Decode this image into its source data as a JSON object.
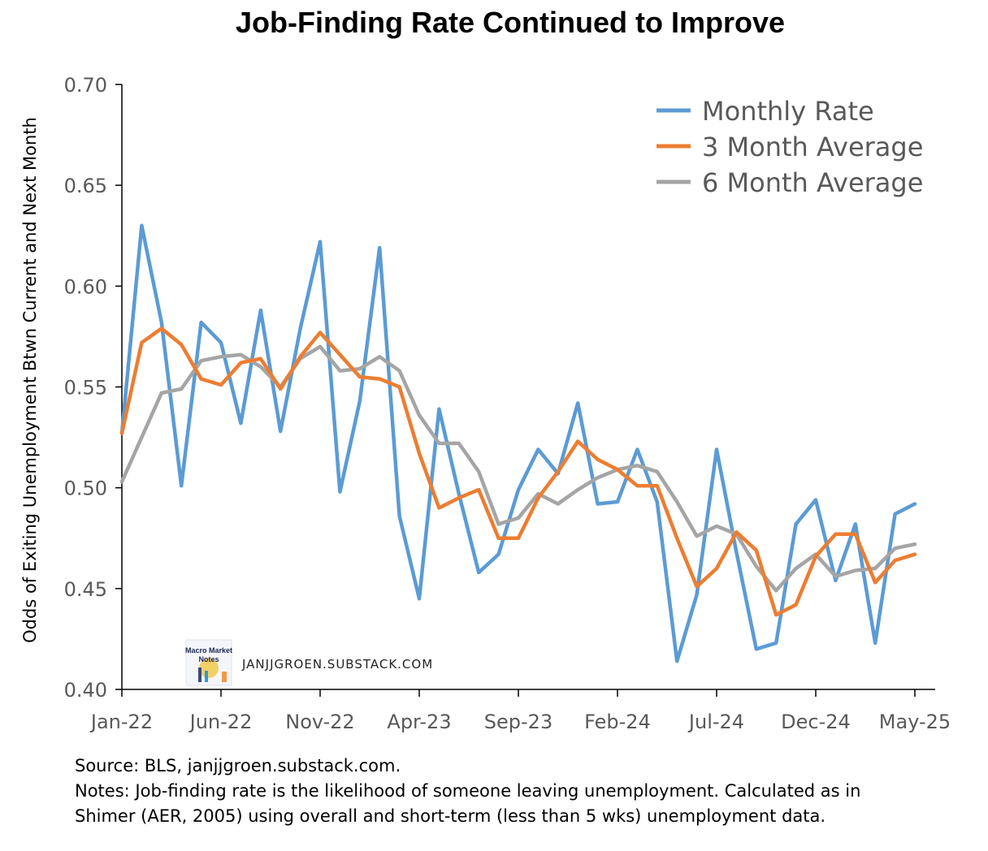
{
  "colors": {
    "monthly": "#5b9bd5",
    "avg3": "#ed7d31",
    "avg6": "#a5a5a5",
    "axis": "#000000",
    "tick_text": "#595959"
  },
  "watermark": {
    "text": "JANJJGROEN.SUBSTACK.COM",
    "logo_text_1": "Macro Market",
    "logo_text_2": "Notes"
  },
  "notes": {
    "source": "Source: BLS, janjjgroen.substack.com.",
    "line1": "Notes: Job-finding rate is the likelihood of someone leaving unemployment. Calculated as in",
    "line2": "Shimer (AER, 2005) using overall and short-term (less than 5 wks) unemployment data."
  },
  "chart_data": {
    "type": "line",
    "title": "Job-Finding Rate Continued to Improve",
    "xlabel": "",
    "ylabel": "Odds of Exiting Unemployment Btwn Current and Next Month",
    "ylim": [
      0.4,
      0.7
    ],
    "yticks": [
      "0.40",
      "0.45",
      "0.50",
      "0.55",
      "0.60",
      "0.65",
      "0.70"
    ],
    "xticks": [
      "Jan-22",
      "Jun-22",
      "Nov-22",
      "Apr-23",
      "Sep-23",
      "Feb-24",
      "Jul-24",
      "Dec-24",
      "May-25"
    ],
    "grid": false,
    "legend_position": "top-right",
    "x": [
      "Jan-22",
      "Feb-22",
      "Mar-22",
      "Apr-22",
      "May-22",
      "Jun-22",
      "Jul-22",
      "Aug-22",
      "Sep-22",
      "Oct-22",
      "Nov-22",
      "Dec-22",
      "Jan-23",
      "Feb-23",
      "Mar-23",
      "Apr-23",
      "May-23",
      "Jun-23",
      "Jul-23",
      "Aug-23",
      "Sep-23",
      "Oct-23",
      "Nov-23",
      "Dec-23",
      "Jan-24",
      "Feb-24",
      "Mar-24",
      "Apr-24",
      "May-24",
      "Jun-24",
      "Jul-24",
      "Aug-24",
      "Sep-24",
      "Oct-24",
      "Nov-24",
      "Dec-24",
      "Jan-25",
      "Feb-25",
      "Mar-25",
      "Apr-25",
      "May-25"
    ],
    "series": [
      {
        "name": "Monthly Rate",
        "values": [
          0.527,
          0.63,
          0.582,
          0.501,
          0.582,
          0.572,
          0.532,
          0.588,
          0.528,
          0.579,
          0.622,
          0.498,
          0.543,
          0.619,
          0.486,
          0.445,
          0.539,
          0.497,
          0.458,
          0.467,
          0.499,
          0.519,
          0.507,
          0.542,
          0.492,
          0.493,
          0.519,
          0.493,
          0.414,
          0.447,
          0.519,
          0.468,
          0.42,
          0.423,
          0.482,
          0.494,
          0.454,
          0.482,
          0.423,
          0.487,
          0.492
        ]
      },
      {
        "name": "3 Month Average",
        "values": [
          0.527,
          0.572,
          0.579,
          0.571,
          0.554,
          0.551,
          0.562,
          0.564,
          0.549,
          0.565,
          0.577,
          0.566,
          0.555,
          0.554,
          0.55,
          0.517,
          0.49,
          0.495,
          0.499,
          0.475,
          0.475,
          0.495,
          0.508,
          0.523,
          0.514,
          0.509,
          0.501,
          0.501,
          0.475,
          0.451,
          0.46,
          0.478,
          0.469,
          0.437,
          0.442,
          0.466,
          0.477,
          0.477,
          0.453,
          0.464,
          0.467
        ]
      },
      {
        "name": "6 Month Average",
        "values": [
          0.503,
          0.525,
          0.547,
          0.549,
          0.563,
          0.565,
          0.566,
          0.56,
          0.55,
          0.564,
          0.57,
          0.558,
          0.559,
          0.565,
          0.558,
          0.536,
          0.522,
          0.522,
          0.508,
          0.482,
          0.485,
          0.497,
          0.492,
          0.499,
          0.505,
          0.509,
          0.511,
          0.508,
          0.493,
          0.476,
          0.481,
          0.477,
          0.461,
          0.449,
          0.46,
          0.467,
          0.456,
          0.459,
          0.46,
          0.47,
          0.472
        ]
      }
    ]
  }
}
